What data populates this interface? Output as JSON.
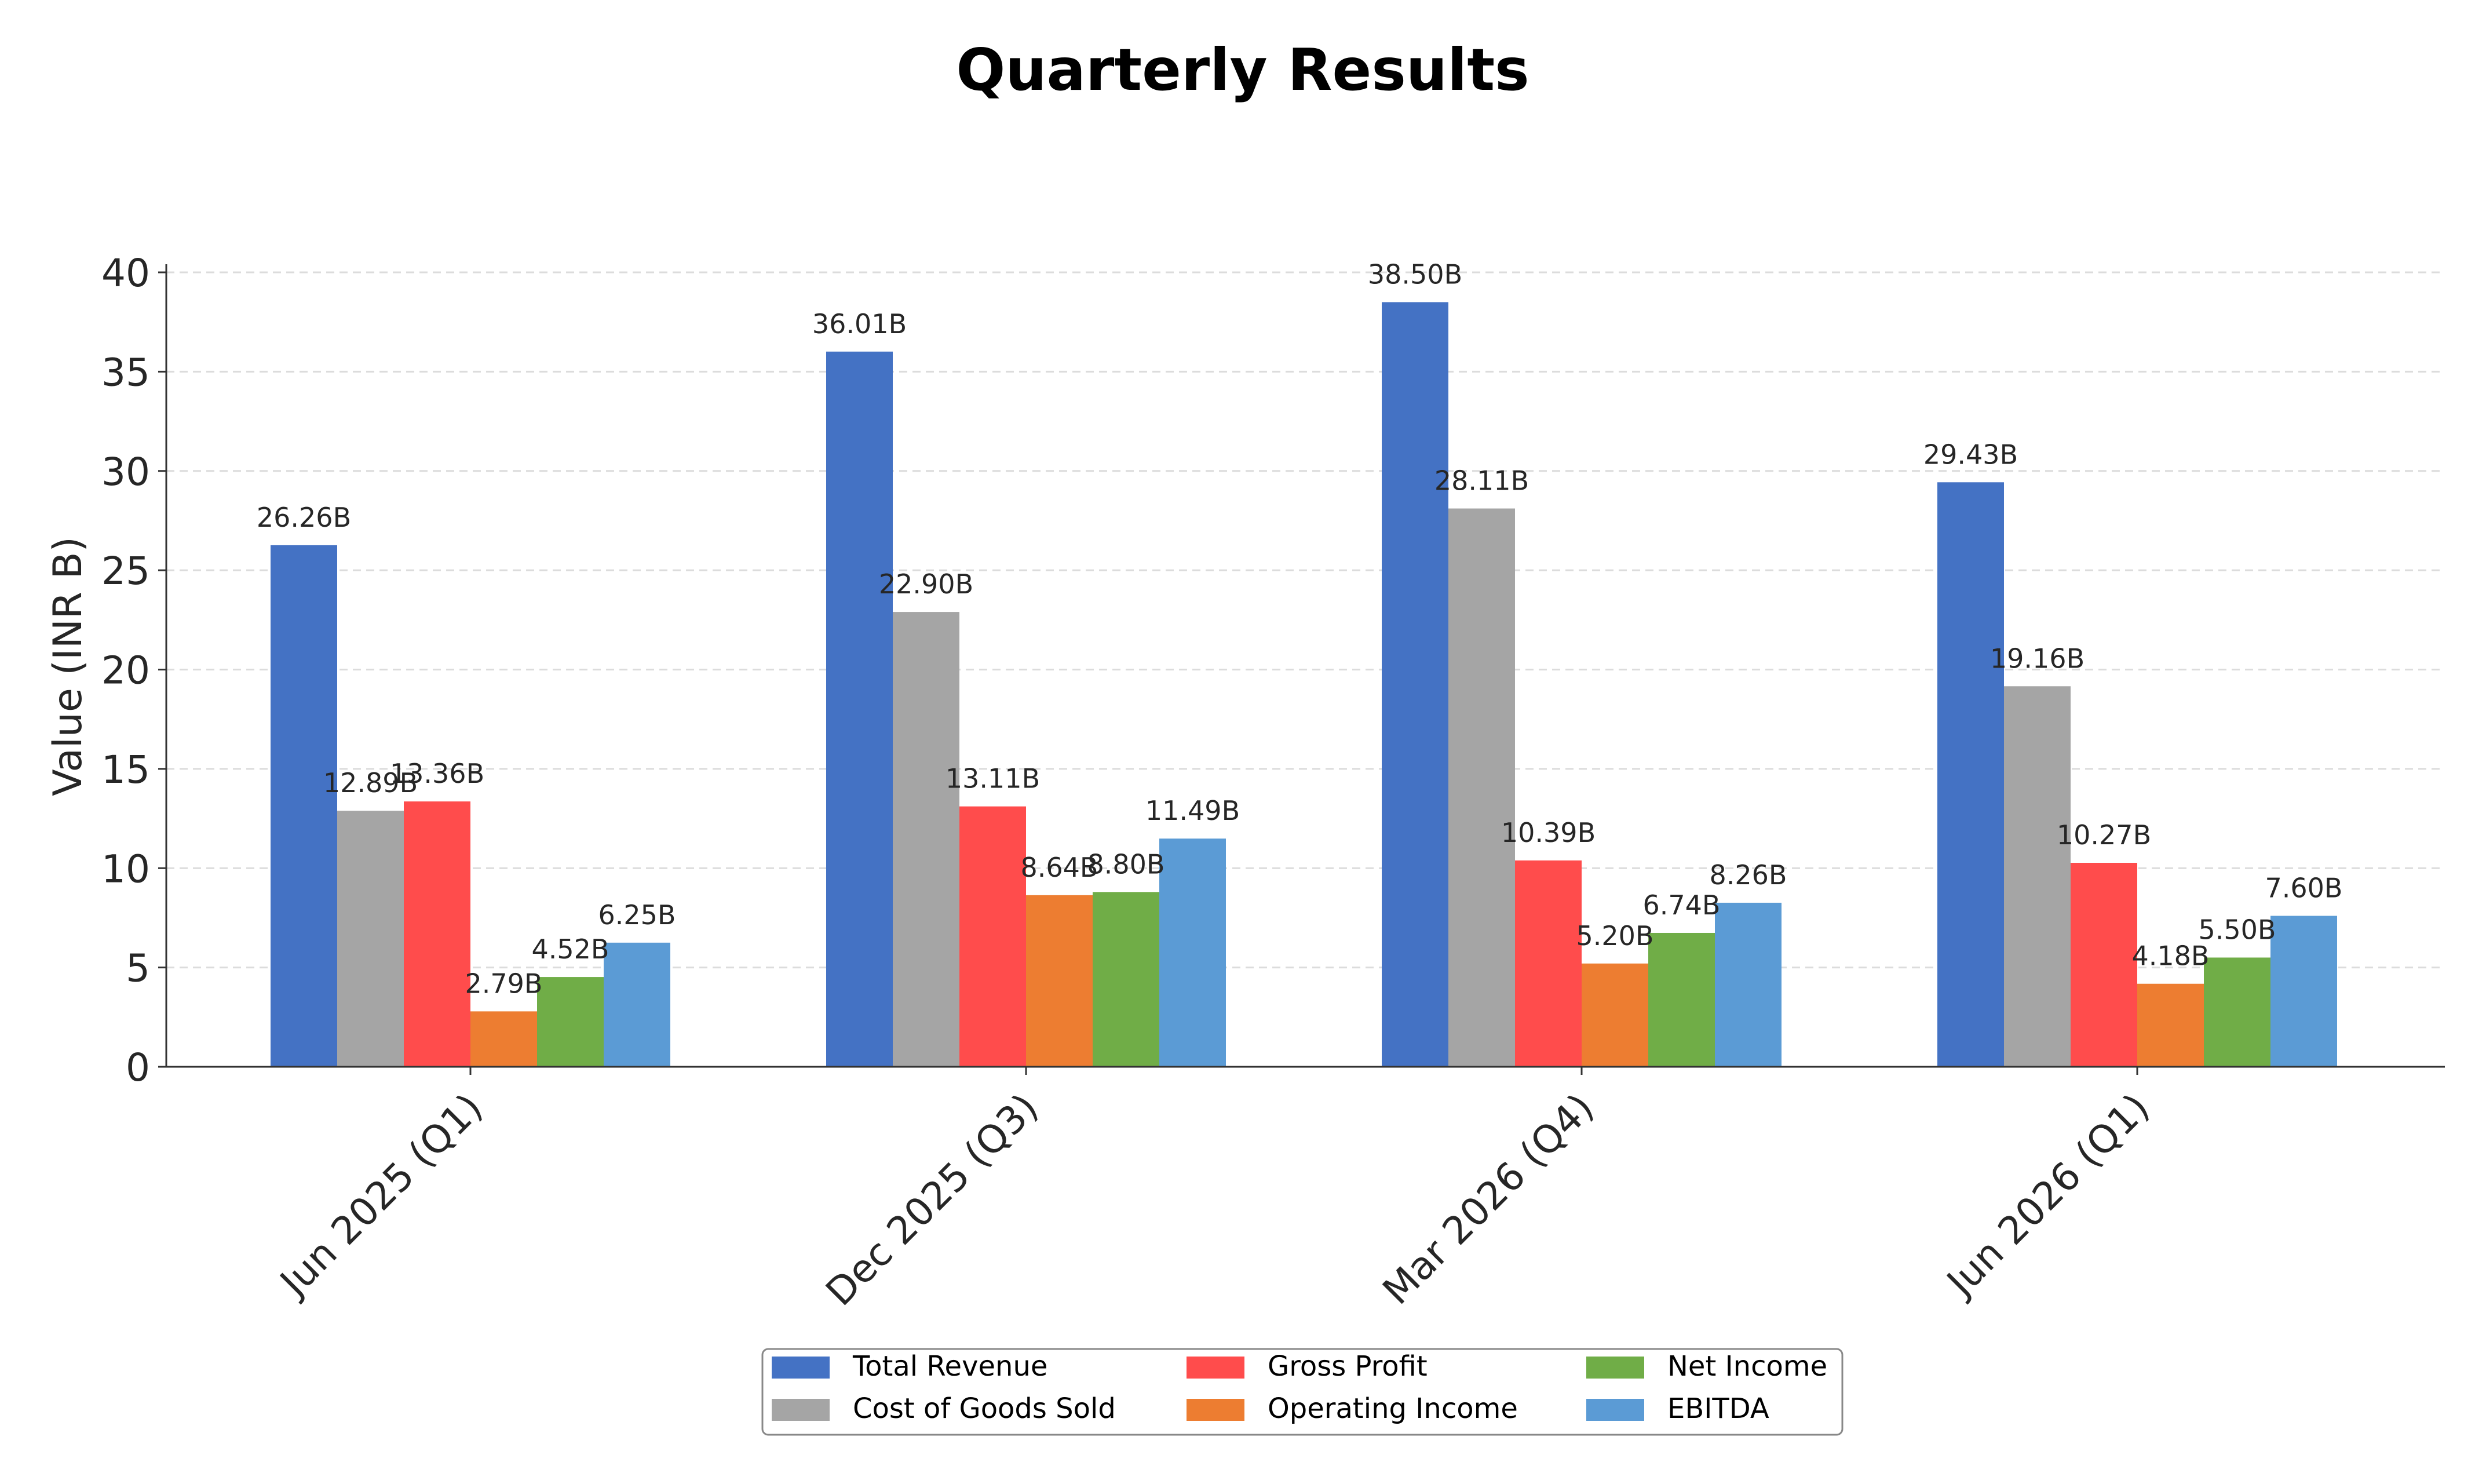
{
  "chart_data": {
    "type": "bar",
    "title": "Quarterly Results",
    "xlabel": "",
    "ylabel": "Value (INR B)",
    "ylim": [
      0,
      40
    ],
    "yticks": [
      0,
      5,
      10,
      15,
      20,
      25,
      30,
      35,
      40
    ],
    "ytick_labels": [
      "0",
      "5",
      "10",
      "15",
      "20",
      "25",
      "30",
      "35",
      "40"
    ],
    "grid": true,
    "legend_position": "bottom-center",
    "categories": [
      "Jun 2025 (Q1)",
      "Dec 2025 (Q3)",
      "Mar 2026 (Q4)",
      "Jun 2026 (Q1)"
    ],
    "series": [
      {
        "name": "Total Revenue",
        "color": "#4472c4",
        "values": [
          26.26,
          36.01,
          38.5,
          29.43
        ],
        "labels": [
          "26.26B",
          "36.01B",
          "38.50B",
          "29.43B"
        ]
      },
      {
        "name": "Cost of Goods Sold",
        "color": "#a5a5a5",
        "values": [
          12.89,
          22.9,
          28.11,
          19.16
        ],
        "labels": [
          "12.89B",
          "22.90B",
          "28.11B",
          "19.16B"
        ]
      },
      {
        "name": "Gross Profit",
        "color": "#ff4c4c",
        "values": [
          13.36,
          13.11,
          10.39,
          10.27
        ],
        "labels": [
          "13.36B",
          "13.11B",
          "10.39B",
          "10.27B"
        ]
      },
      {
        "name": "Operating Income",
        "color": "#ed7d31",
        "values": [
          2.79,
          8.64,
          5.2,
          4.18
        ],
        "labels": [
          "2.79B",
          "8.64B",
          "5.20B",
          "4.18B"
        ]
      },
      {
        "name": "Net Income",
        "color": "#70ad47",
        "values": [
          4.52,
          8.8,
          6.74,
          5.5
        ],
        "labels": [
          "4.52B",
          "8.80B",
          "6.74B",
          "5.50B"
        ]
      },
      {
        "name": "EBITDA",
        "color": "#5b9bd5",
        "values": [
          6.25,
          11.49,
          8.26,
          7.6
        ],
        "labels": [
          "6.25B",
          "11.49B",
          "8.26B",
          "7.60B"
        ]
      }
    ]
  }
}
